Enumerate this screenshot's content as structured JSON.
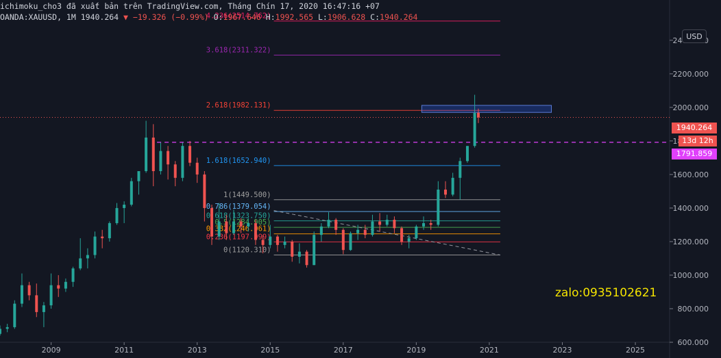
{
  "header": {
    "line1": "ichimoku_cho3 đã xuất bản trên TradingView.com, Tháng Chín 17, 2020 16:47:16 +07",
    "symbol": "OANDA:XAUUSD, 1M",
    "last": "1940.264",
    "change": "▼ −19.326 (−0.99%)",
    "o_label": "O:",
    "o": "1967.646",
    "h_label": "H:",
    "h": "1992.565",
    "l_label": "L:",
    "l": "1906.628",
    "c_label": "C:",
    "c": "1940.264"
  },
  "currency_button": "USD",
  "badges": {
    "price": "1940.264",
    "countdown": "13d 12h",
    "level": "1791.859"
  },
  "watermark": "zalo:0935102621",
  "colors": {
    "background": "#131722",
    "up": "#26a69a",
    "down": "#ef5350",
    "level": "#e040fb"
  },
  "chart_data": {
    "type": "candlestick",
    "x_axis": {
      "ticks": [
        "2009",
        "2011",
        "2013",
        "2015",
        "2017",
        "2019",
        "2021",
        "2023",
        "2025"
      ],
      "range": [
        2007.6,
        2025.9
      ]
    },
    "y_axis": {
      "ticks": [
        "600.000",
        "800.000",
        "1000.000",
        "1200.000",
        "1400.000",
        "1600.000",
        "1800.000",
        "2000.000",
        "2200.000",
        "2400.000"
      ],
      "range": [
        600,
        2640
      ],
      "position": "right"
    },
    "fibonacci": {
      "x_start": 2015.1,
      "x_end": 2021.3,
      "levels": [
        {
          "label": "0(1120.310)",
          "ratio": 0,
          "price": 1120.31,
          "color": "#9e9e9e"
        },
        {
          "label": "0.236(1197.999)",
          "ratio": 0.236,
          "price": 1197.999,
          "color": "#f23645"
        },
        {
          "label": "0.382(1246.061)",
          "ratio": 0.382,
          "price": 1246.061,
          "color": "#ff9800"
        },
        {
          "label": "0.5(1284.905)",
          "ratio": 0.5,
          "price": 1284.905,
          "color": "#4caf50"
        },
        {
          "label": "0.618(1323.750)",
          "ratio": 0.618,
          "price": 1323.75,
          "color": "#26a69a"
        },
        {
          "label": "0.786(1379.054)",
          "ratio": 0.786,
          "price": 1379.054,
          "color": "#64b5f6"
        },
        {
          "label": "1(1449.500)",
          "ratio": 1,
          "price": 1449.5,
          "color": "#9e9e9e"
        },
        {
          "label": "1.618(1652.940)",
          "ratio": 1.618,
          "price": 1652.94,
          "color": "#2196f3"
        },
        {
          "label": "2.618(1982.131)",
          "ratio": 2.618,
          "price": 1982.131,
          "color": "#f44336"
        },
        {
          "label": "3.618(2311.322)",
          "ratio": 3.618,
          "price": 2311.322,
          "color": "#9c27b0"
        },
        {
          "label": "4.236(2514.762)",
          "ratio": 4.236,
          "price": 2514.762,
          "color": "#e91e63"
        }
      ]
    },
    "price_line": 1940.264,
    "level_line": {
      "price": 1791.859,
      "x_start": 2011.9
    },
    "trendline": {
      "from": [
        2015.1,
        1385
      ],
      "to": [
        2021.3,
        1120
      ]
    },
    "zone": {
      "x_start": 2019.15,
      "x_end": 2022.7,
      "y_low": 1970,
      "y_high": 2012
    },
    "candles": [
      {
        "t": 2007.6,
        "o": 650,
        "h": 700,
        "l": 640,
        "c": 680
      },
      {
        "t": 2007.8,
        "o": 680,
        "h": 710,
        "l": 660,
        "c": 690
      },
      {
        "t": 2008.0,
        "o": 690,
        "h": 850,
        "l": 680,
        "c": 830
      },
      {
        "t": 2008.2,
        "o": 830,
        "h": 1010,
        "l": 810,
        "c": 940
      },
      {
        "t": 2008.4,
        "o": 940,
        "h": 960,
        "l": 850,
        "c": 880
      },
      {
        "t": 2008.6,
        "o": 880,
        "h": 950,
        "l": 750,
        "c": 780
      },
      {
        "t": 2008.8,
        "o": 780,
        "h": 840,
        "l": 690,
        "c": 820
      },
      {
        "t": 2009.0,
        "o": 820,
        "h": 1010,
        "l": 800,
        "c": 940
      },
      {
        "t": 2009.2,
        "o": 940,
        "h": 1000,
        "l": 870,
        "c": 920
      },
      {
        "t": 2009.4,
        "o": 920,
        "h": 980,
        "l": 900,
        "c": 960
      },
      {
        "t": 2009.6,
        "o": 960,
        "h": 1050,
        "l": 930,
        "c": 1040
      },
      {
        "t": 2009.8,
        "o": 1040,
        "h": 1220,
        "l": 1030,
        "c": 1100
      },
      {
        "t": 2010.0,
        "o": 1100,
        "h": 1160,
        "l": 1040,
        "c": 1120
      },
      {
        "t": 2010.2,
        "o": 1120,
        "h": 1260,
        "l": 1100,
        "c": 1230
      },
      {
        "t": 2010.4,
        "o": 1230,
        "h": 1270,
        "l": 1160,
        "c": 1220
      },
      {
        "t": 2010.6,
        "o": 1220,
        "h": 1320,
        "l": 1200,
        "c": 1310
      },
      {
        "t": 2010.8,
        "o": 1310,
        "h": 1430,
        "l": 1300,
        "c": 1400
      },
      {
        "t": 2011.0,
        "o": 1400,
        "h": 1440,
        "l": 1310,
        "c": 1420
      },
      {
        "t": 2011.2,
        "o": 1420,
        "h": 1580,
        "l": 1410,
        "c": 1560
      },
      {
        "t": 2011.4,
        "o": 1560,
        "h": 1620,
        "l": 1480,
        "c": 1620
      },
      {
        "t": 2011.6,
        "o": 1620,
        "h": 1920,
        "l": 1610,
        "c": 1820
      },
      {
        "t": 2011.8,
        "o": 1820,
        "h": 1900,
        "l": 1530,
        "c": 1620
      },
      {
        "t": 2012.0,
        "o": 1620,
        "h": 1790,
        "l": 1600,
        "c": 1740
      },
      {
        "t": 2012.2,
        "o": 1740,
        "h": 1770,
        "l": 1570,
        "c": 1660
      },
      {
        "t": 2012.4,
        "o": 1660,
        "h": 1680,
        "l": 1530,
        "c": 1580
      },
      {
        "t": 2012.6,
        "o": 1580,
        "h": 1790,
        "l": 1560,
        "c": 1770
      },
      {
        "t": 2012.8,
        "o": 1770,
        "h": 1800,
        "l": 1650,
        "c": 1670
      },
      {
        "t": 2013.0,
        "o": 1670,
        "h": 1700,
        "l": 1550,
        "c": 1600
      },
      {
        "t": 2013.2,
        "o": 1600,
        "h": 1620,
        "l": 1320,
        "c": 1400
      },
      {
        "t": 2013.4,
        "o": 1400,
        "h": 1420,
        "l": 1180,
        "c": 1230
      },
      {
        "t": 2013.6,
        "o": 1230,
        "h": 1430,
        "l": 1210,
        "c": 1320
      },
      {
        "t": 2013.8,
        "o": 1320,
        "h": 1360,
        "l": 1210,
        "c": 1250
      },
      {
        "t": 2014.0,
        "o": 1250,
        "h": 1390,
        "l": 1240,
        "c": 1320
      },
      {
        "t": 2014.2,
        "o": 1320,
        "h": 1340,
        "l": 1250,
        "c": 1290
      },
      {
        "t": 2014.4,
        "o": 1290,
        "h": 1340,
        "l": 1260,
        "c": 1310
      },
      {
        "t": 2014.6,
        "o": 1310,
        "h": 1330,
        "l": 1180,
        "c": 1210
      },
      {
        "t": 2014.8,
        "o": 1210,
        "h": 1240,
        "l": 1130,
        "c": 1180
      },
      {
        "t": 2015.0,
        "o": 1180,
        "h": 1300,
        "l": 1160,
        "c": 1230
      },
      {
        "t": 2015.2,
        "o": 1230,
        "h": 1240,
        "l": 1140,
        "c": 1180
      },
      {
        "t": 2015.4,
        "o": 1180,
        "h": 1230,
        "l": 1160,
        "c": 1200
      },
      {
        "t": 2015.6,
        "o": 1200,
        "h": 1210,
        "l": 1080,
        "c": 1110
      },
      {
        "t": 2015.8,
        "o": 1110,
        "h": 1190,
        "l": 1070,
        "c": 1140
      },
      {
        "t": 2016.0,
        "o": 1140,
        "h": 1150,
        "l": 1045,
        "c": 1060
      },
      {
        "t": 2016.2,
        "o": 1060,
        "h": 1260,
        "l": 1060,
        "c": 1240
      },
      {
        "t": 2016.4,
        "o": 1240,
        "h": 1310,
        "l": 1200,
        "c": 1290
      },
      {
        "t": 2016.6,
        "o": 1290,
        "h": 1375,
        "l": 1280,
        "c": 1330
      },
      {
        "t": 2016.8,
        "o": 1330,
        "h": 1340,
        "l": 1240,
        "c": 1270
      },
      {
        "t": 2017.0,
        "o": 1270,
        "h": 1280,
        "l": 1125,
        "c": 1150
      },
      {
        "t": 2017.2,
        "o": 1150,
        "h": 1260,
        "l": 1145,
        "c": 1250
      },
      {
        "t": 2017.4,
        "o": 1250,
        "h": 1300,
        "l": 1210,
        "c": 1270
      },
      {
        "t": 2017.6,
        "o": 1270,
        "h": 1300,
        "l": 1220,
        "c": 1240
      },
      {
        "t": 2017.8,
        "o": 1240,
        "h": 1360,
        "l": 1230,
        "c": 1320
      },
      {
        "t": 2018.0,
        "o": 1320,
        "h": 1370,
        "l": 1260,
        "c": 1300
      },
      {
        "t": 2018.2,
        "o": 1300,
        "h": 1360,
        "l": 1290,
        "c": 1330
      },
      {
        "t": 2018.4,
        "o": 1330,
        "h": 1350,
        "l": 1250,
        "c": 1280
      },
      {
        "t": 2018.6,
        "o": 1280,
        "h": 1290,
        "l": 1180,
        "c": 1200
      },
      {
        "t": 2018.8,
        "o": 1200,
        "h": 1240,
        "l": 1160,
        "c": 1220
      },
      {
        "t": 2019.0,
        "o": 1220,
        "h": 1300,
        "l": 1210,
        "c": 1290
      },
      {
        "t": 2019.2,
        "o": 1290,
        "h": 1350,
        "l": 1270,
        "c": 1310
      },
      {
        "t": 2019.4,
        "o": 1310,
        "h": 1330,
        "l": 1270,
        "c": 1300
      },
      {
        "t": 2019.6,
        "o": 1300,
        "h": 1560,
        "l": 1290,
        "c": 1510
      },
      {
        "t": 2019.8,
        "o": 1510,
        "h": 1560,
        "l": 1460,
        "c": 1480
      },
      {
        "t": 2020.0,
        "o": 1480,
        "h": 1610,
        "l": 1470,
        "c": 1580
      },
      {
        "t": 2020.2,
        "o": 1580,
        "h": 1700,
        "l": 1450,
        "c": 1680
      },
      {
        "t": 2020.4,
        "o": 1680,
        "h": 1770,
        "l": 1670,
        "c": 1770
      },
      {
        "t": 2020.6,
        "o": 1770,
        "h": 2075,
        "l": 1760,
        "c": 1967
      },
      {
        "t": 2020.7,
        "o": 1967.646,
        "h": 1992.565,
        "l": 1906.628,
        "c": 1940.264
      }
    ]
  }
}
